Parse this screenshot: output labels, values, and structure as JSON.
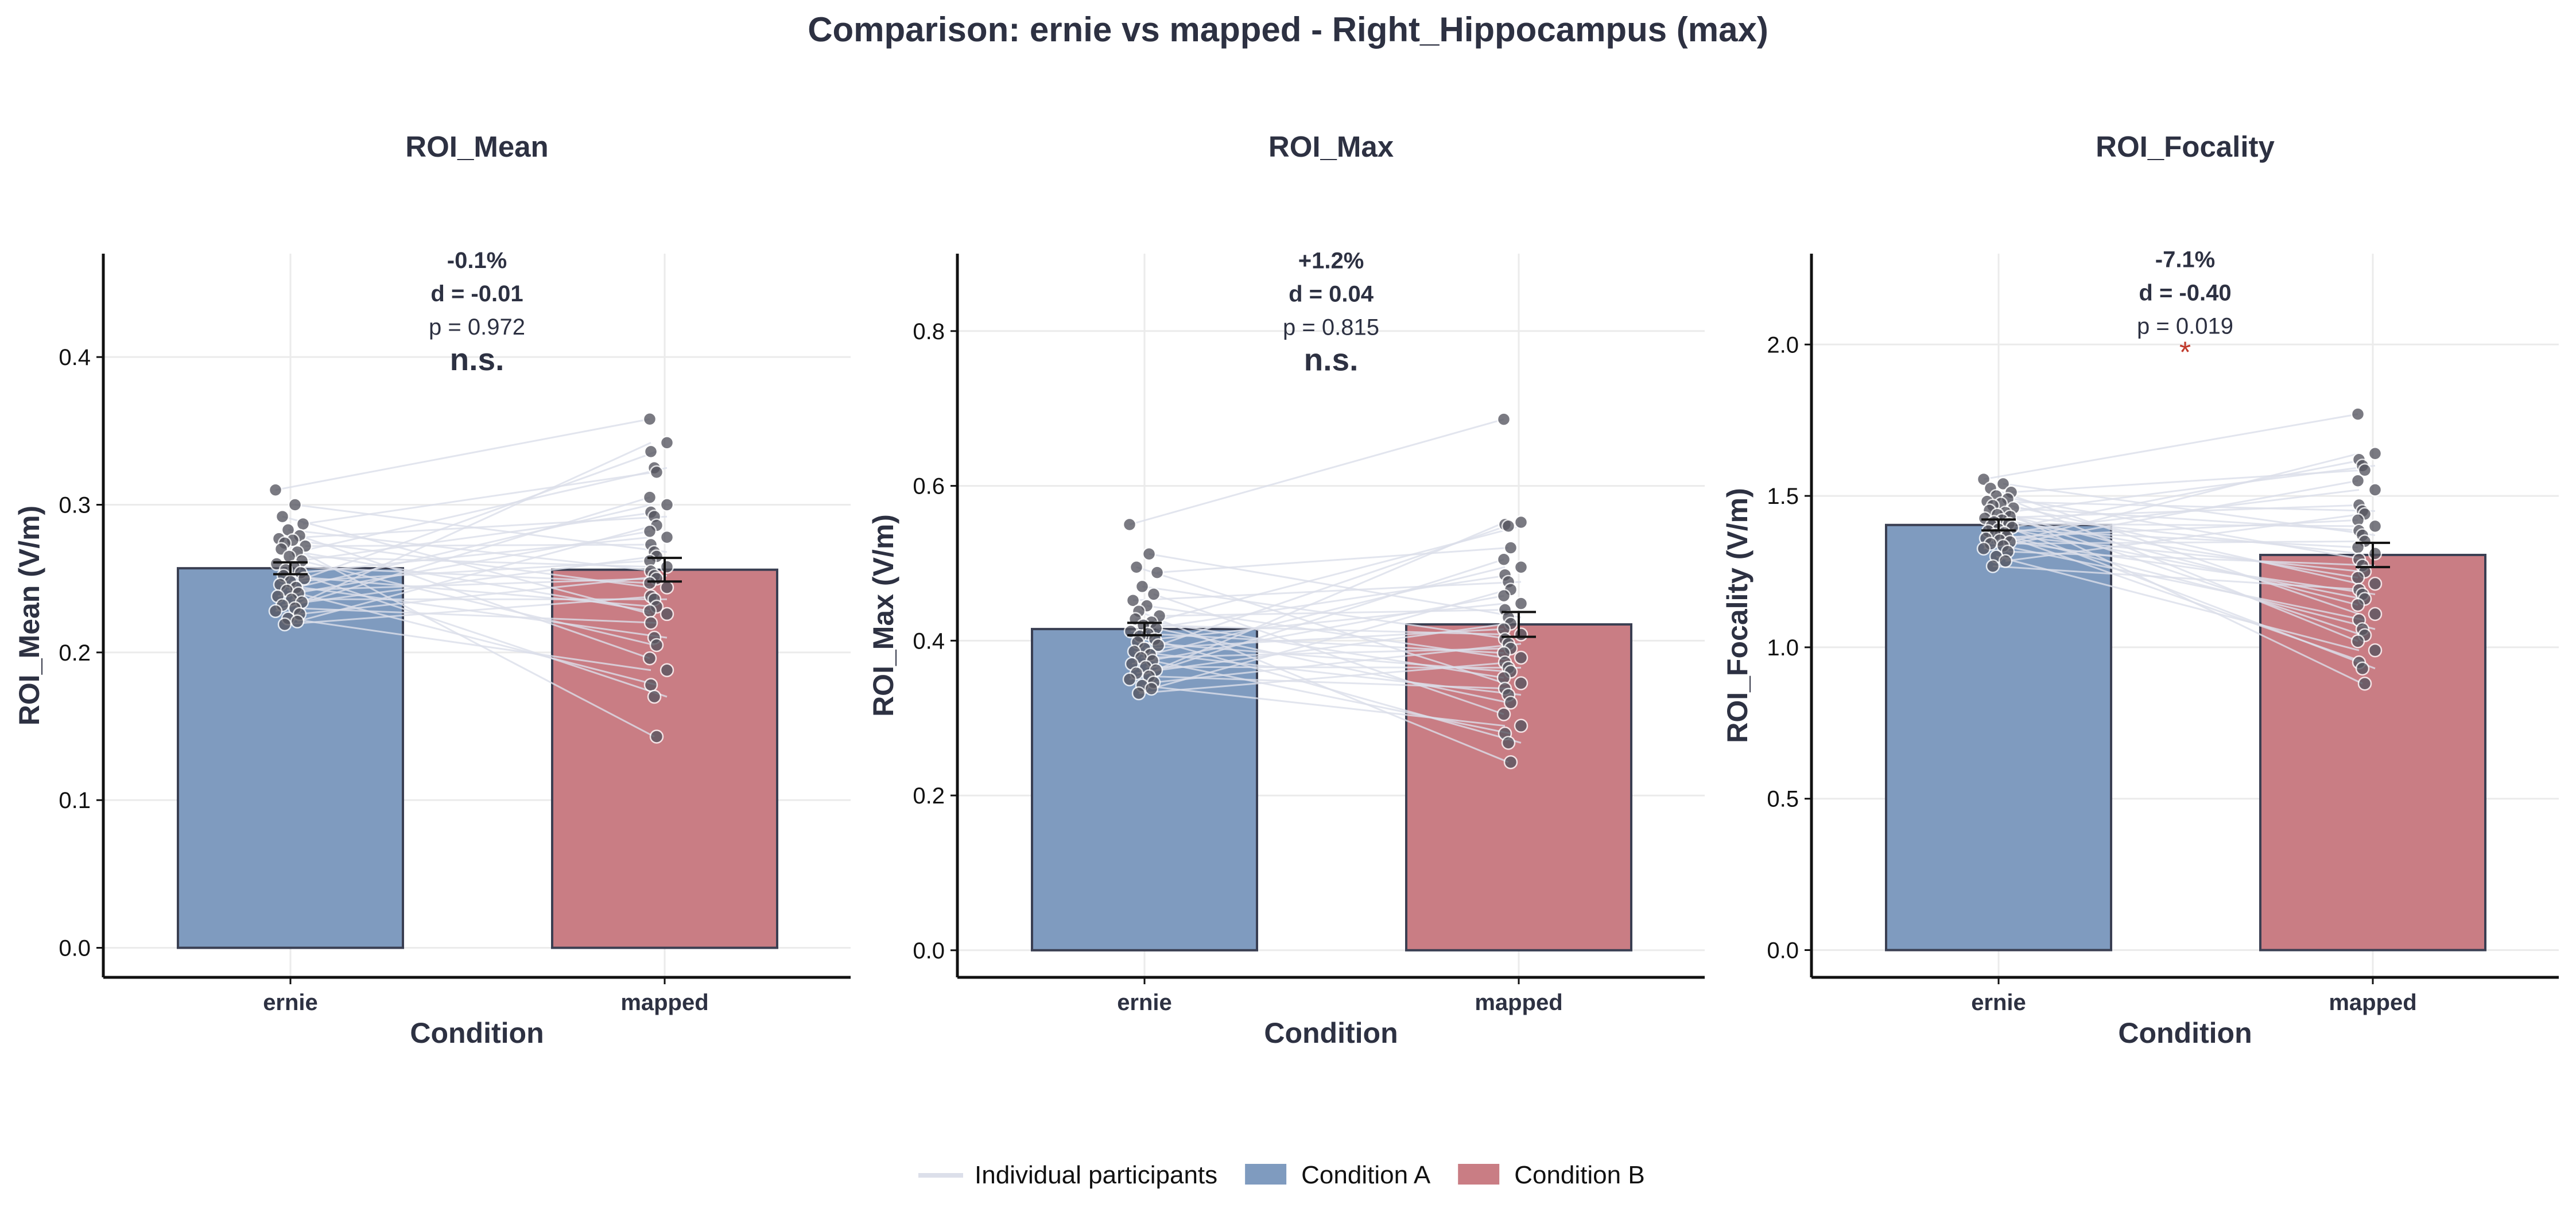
{
  "figure": {
    "title": "Comparison: ernie vs mapped - Right_Hippocampus (max)"
  },
  "colors": {
    "condition_a": "#7f9bbf",
    "condition_b": "#c97d84",
    "participant_line": "#dcdfea",
    "dot": "#55555f",
    "significance": "#c0392b",
    "text": "#2d3142"
  },
  "legend": {
    "items": [
      {
        "label": "Individual participants",
        "kind": "line"
      },
      {
        "label": "Condition A",
        "kind": "patch_a"
      },
      {
        "label": "Condition B",
        "kind": "patch_b"
      }
    ]
  },
  "chart_data": [
    {
      "type": "bar",
      "title": "ROI_Mean",
      "xlabel": "Condition",
      "ylabel": "ROI_Mean (V/m)",
      "categories": [
        "ernie",
        "mapped"
      ],
      "ylim": [
        -0.02,
        0.47
      ],
      "yticks": [
        0.0,
        0.1,
        0.2,
        0.3,
        0.4
      ],
      "ytick_labels": [
        "0.0",
        "0.1",
        "0.2",
        "0.3",
        "0.4"
      ],
      "grid": true,
      "values": [
        0.257,
        0.256
      ],
      "sem": [
        0.004,
        0.008
      ],
      "annotation": {
        "change": "-0.1%",
        "effect": "d = -0.01",
        "p": "p = 0.972",
        "sig": "n.s.",
        "sig_style": "ns"
      },
      "participants": {
        "ernie": [
          0.31,
          0.3,
          0.292,
          0.287,
          0.283,
          0.279,
          0.277,
          0.276,
          0.274,
          0.272,
          0.27,
          0.268,
          0.265,
          0.262,
          0.26,
          0.258,
          0.256,
          0.254,
          0.252,
          0.25,
          0.248,
          0.246,
          0.244,
          0.242,
          0.24,
          0.238,
          0.236,
          0.234,
          0.232,
          0.23,
          0.228,
          0.226,
          0.223,
          0.221,
          0.219
        ],
        "mapped": [
          0.358,
          0.342,
          0.336,
          0.325,
          0.322,
          0.305,
          0.3,
          0.295,
          0.292,
          0.286,
          0.282,
          0.278,
          0.273,
          0.268,
          0.265,
          0.262,
          0.258,
          0.255,
          0.252,
          0.25,
          0.247,
          0.244,
          0.238,
          0.236,
          0.231,
          0.228,
          0.226,
          0.22,
          0.21,
          0.205,
          0.196,
          0.188,
          0.178,
          0.17,
          0.143
        ]
      }
    },
    {
      "type": "bar",
      "title": "ROI_Max",
      "xlabel": "Condition",
      "ylabel": "ROI_Max (V/m)",
      "categories": [
        "ernie",
        "mapped"
      ],
      "ylim": [
        -0.035,
        0.9
      ],
      "yticks": [
        0.0,
        0.2,
        0.4,
        0.6,
        0.8
      ],
      "ytick_labels": [
        "0.0",
        "0.2",
        "0.4",
        "0.6",
        "0.8"
      ],
      "grid": true,
      "values": [
        0.415,
        0.421
      ],
      "sem": [
        0.008,
        0.016
      ],
      "annotation": {
        "change": "+1.2%",
        "effect": "d = 0.04",
        "p": "p = 0.815",
        "sig": "n.s.",
        "sig_style": "ns"
      },
      "participants": {
        "ernie": [
          0.55,
          0.512,
          0.495,
          0.488,
          0.47,
          0.46,
          0.452,
          0.445,
          0.438,
          0.432,
          0.428,
          0.424,
          0.42,
          0.416,
          0.412,
          0.409,
          0.406,
          0.402,
          0.398,
          0.394,
          0.39,
          0.386,
          0.382,
          0.378,
          0.374,
          0.37,
          0.366,
          0.362,
          0.358,
          0.354,
          0.35,
          0.346,
          0.342,
          0.338,
          0.332
        ],
        "mapped": [
          0.686,
          0.553,
          0.55,
          0.548,
          0.52,
          0.505,
          0.495,
          0.485,
          0.476,
          0.466,
          0.458,
          0.448,
          0.44,
          0.43,
          0.422,
          0.415,
          0.408,
          0.402,
          0.396,
          0.39,
          0.384,
          0.378,
          0.372,
          0.365,
          0.36,
          0.352,
          0.345,
          0.338,
          0.33,
          0.32,
          0.305,
          0.29,
          0.28,
          0.268,
          0.243
        ]
      }
    },
    {
      "type": "bar",
      "title": "ROI_Focality",
      "xlabel": "Condition",
      "ylabel": "ROI_Focality (V/m)",
      "categories": [
        "ernie",
        "mapped"
      ],
      "ylim": [
        -0.09,
        2.3
      ],
      "yticks": [
        0.0,
        0.5,
        1.0,
        1.5,
        2.0
      ],
      "ytick_labels": [
        "0.0",
        "0.5",
        "1.0",
        "1.5",
        "2.0"
      ],
      "grid": true,
      "values": [
        1.404,
        1.305
      ],
      "sem": [
        0.018,
        0.04
      ],
      "annotation": {
        "change": "-7.1%",
        "effect": "d = -0.40",
        "p": "p = 0.019",
        "sig": "*",
        "sig_style": "star"
      },
      "participants": {
        "ernie": [
          1.555,
          1.54,
          1.525,
          1.512,
          1.5,
          1.49,
          1.482,
          1.475,
          1.468,
          1.46,
          1.452,
          1.445,
          1.438,
          1.432,
          1.426,
          1.42,
          1.414,
          1.408,
          1.402,
          1.396,
          1.39,
          1.384,
          1.378,
          1.372,
          1.366,
          1.36,
          1.354,
          1.348,
          1.342,
          1.335,
          1.326,
          1.316,
          1.3,
          1.285,
          1.268
        ],
        "mapped": [
          1.77,
          1.64,
          1.62,
          1.6,
          1.585,
          1.55,
          1.52,
          1.47,
          1.45,
          1.44,
          1.42,
          1.4,
          1.385,
          1.37,
          1.35,
          1.33,
          1.31,
          1.29,
          1.27,
          1.25,
          1.23,
          1.21,
          1.19,
          1.175,
          1.16,
          1.14,
          1.11,
          1.09,
          1.06,
          1.04,
          1.02,
          0.99,
          0.95,
          0.93,
          0.88
        ]
      }
    }
  ]
}
